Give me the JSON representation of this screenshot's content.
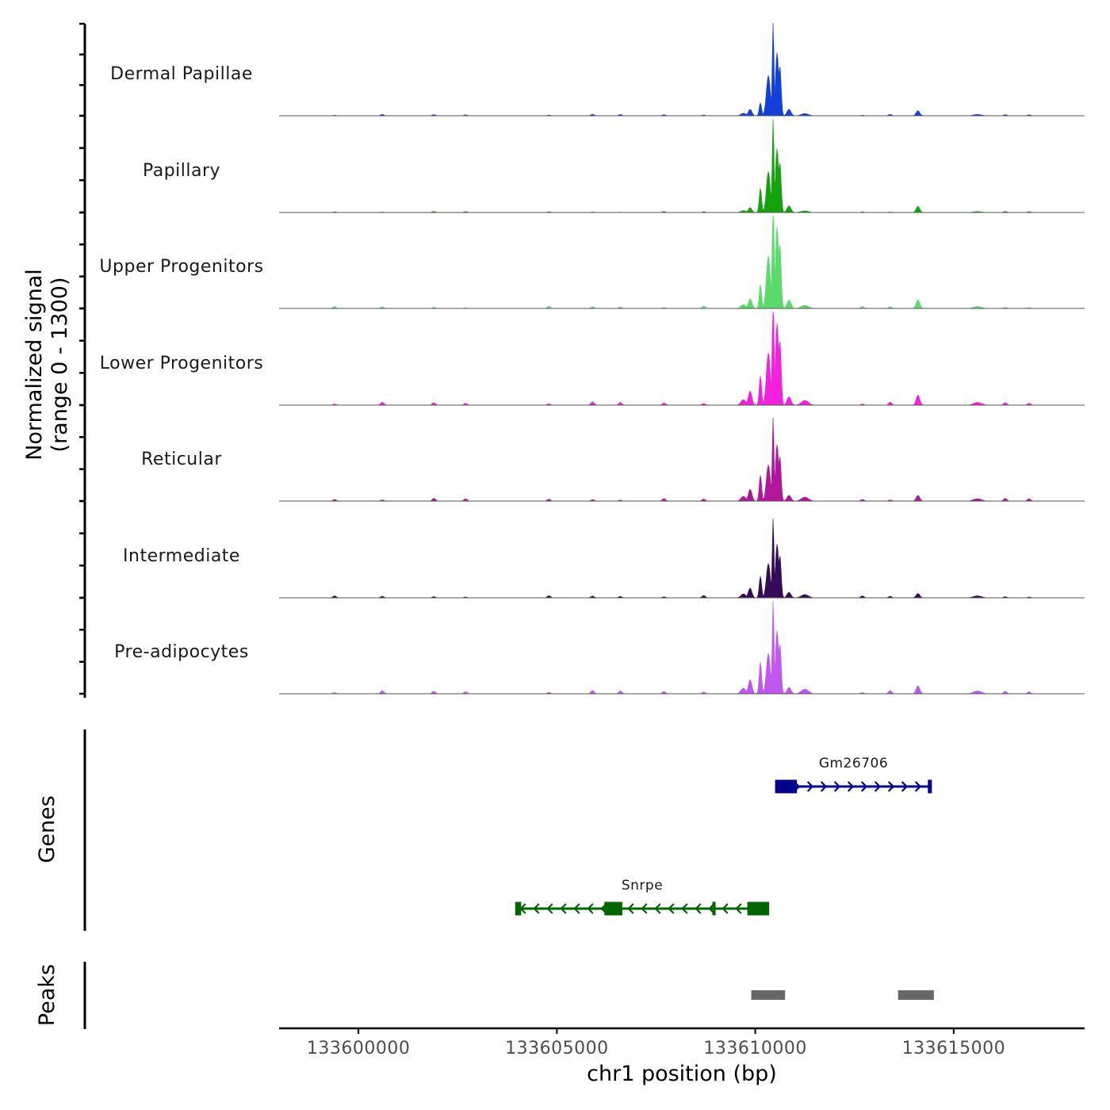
{
  "chart_data": {
    "type": "area",
    "chromosome": "chr1",
    "xlabel": "chr1 position (bp)",
    "xlim": [
      133598000,
      133618300
    ],
    "xticks": [
      133600000,
      133605000,
      133610000,
      133615000
    ],
    "xtick_labels": [
      "133600000",
      "133605000",
      "133610000",
      "133615000"
    ],
    "coverage": {
      "ylabel_line1": "Normalized signal",
      "ylabel_line2": "(range 0 - 1300)",
      "ylim": [
        0,
        1300
      ],
      "series": [
        {
          "name": "Dermal Papillae",
          "color": "#1540d8",
          "scale": 1.0,
          "shoulder": 180,
          "x2": 0.6,
          "right_peak": 70
        },
        {
          "name": "Papillary",
          "color": "#16a10e",
          "scale": 1.01,
          "shoulder": 340,
          "x2": 0.45,
          "right_peak": 85
        },
        {
          "name": "Upper Progenitors",
          "color": "#5cdb6c",
          "scale": 1.3,
          "shoulder": 330,
          "x2": 0.9,
          "right_peak": 120
        },
        {
          "name": "Lower Progenitors",
          "color": "#f321de",
          "scale": 1.3,
          "shoulder": 410,
          "x2": 1.3,
          "right_peak": 140
        },
        {
          "name": "Reticular",
          "color": "#b0179b",
          "scale": 0.9,
          "shoulder": 360,
          "x2": 1.1,
          "right_peak": 80
        },
        {
          "name": "Intermediate",
          "color": "#330b57",
          "scale": 0.85,
          "shoulder": 300,
          "x2": 0.9,
          "right_peak": 60
        },
        {
          "name": "Pre-adipocytes",
          "color": "#c058f0",
          "scale": 1.0,
          "shoulder": 440,
          "x2": 1.3,
          "right_peak": 110
        }
      ],
      "peak_center": 133610400
    },
    "genes": {
      "ylabel": "Genes",
      "items": [
        {
          "name": "Gm26706",
          "color": "#00008b",
          "strand": "+",
          "start": 133610500,
          "end": 133614450,
          "exons": [
            [
              133610500,
              133611050
            ],
            [
              133614350,
              133614450
            ]
          ]
        },
        {
          "name": "Snrpe",
          "color": "#006400",
          "strand": "-",
          "start": 133603950,
          "end": 133610350,
          "exons": [
            [
              133603950,
              133604100
            ],
            [
              133606200,
              133606650
            ],
            [
              133608920,
              133608990
            ],
            [
              133609800,
              133610350
            ]
          ]
        }
      ]
    },
    "peaks": {
      "ylabel": "Peaks",
      "color": "#666666",
      "regions": [
        [
          133609900,
          133610750
        ],
        [
          133613600,
          133614500
        ]
      ]
    }
  }
}
